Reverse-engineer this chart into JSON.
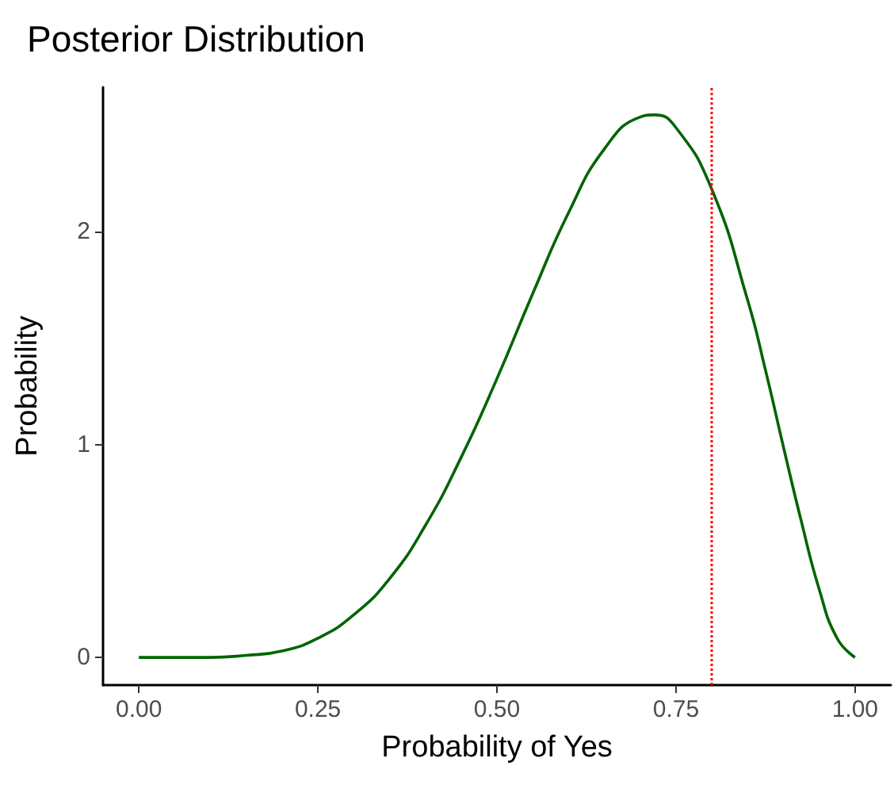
{
  "chart_data": {
    "type": "line",
    "title": "Posterior Distribution",
    "xlabel": "Probability of Yes",
    "ylabel": "Probability",
    "x": [
      0,
      0.05,
      0.1,
      0.15,
      0.2,
      0.25,
      0.3,
      0.35,
      0.4,
      0.45,
      0.5,
      0.55,
      0.6,
      0.65,
      0.7,
      0.72,
      0.75,
      0.8,
      0.85,
      0.875,
      0.9,
      0.925,
      0.95,
      0.975,
      1
    ],
    "series": [
      {
        "color": "#006400",
        "values": [
          0,
          0,
          0,
          0.01,
          0.03,
          0.09,
          0.2,
          0.37,
          0.62,
          0.94,
          1.31,
          1.71,
          2.09,
          2.39,
          2.54,
          2.55,
          2.49,
          2.2,
          1.68,
          1.35,
          0.99,
          0.64,
          0.32,
          0.09,
          0
        ]
      }
    ],
    "xlim": [
      -0.05,
      1.05
    ],
    "ylim": [
      -0.13,
      2.68
    ],
    "xticks": [
      {
        "value": 0,
        "label": "0.00"
      },
      {
        "value": 0.25,
        "label": "0.25"
      },
      {
        "value": 0.5,
        "label": "0.50"
      },
      {
        "value": 0.75,
        "label": "0.75"
      },
      {
        "value": 1,
        "label": "1.00"
      }
    ],
    "yticks": [
      0,
      1,
      2
    ],
    "ref_lines": [
      {
        "axis": "x",
        "value": 0.8,
        "color": "#ff0000",
        "line_style": "dotted"
      }
    ],
    "grid": false,
    "marker": "none",
    "line_style": "solid"
  }
}
